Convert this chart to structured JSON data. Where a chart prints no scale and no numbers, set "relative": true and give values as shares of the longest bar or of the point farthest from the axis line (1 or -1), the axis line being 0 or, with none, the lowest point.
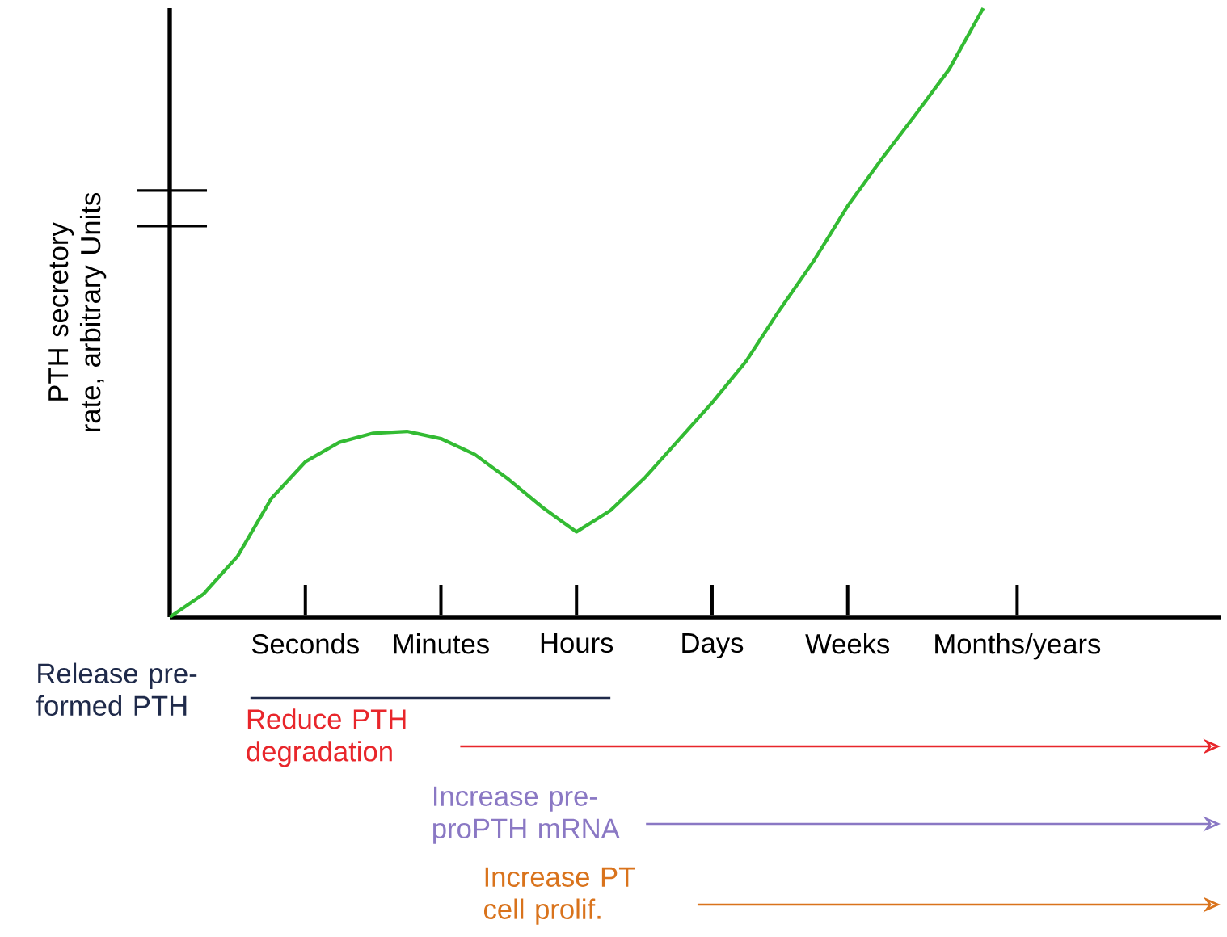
{
  "chart_data": {
    "type": "line",
    "relative": true,
    "ylabel": "PTH secretory rate, arbitrary Units",
    "categories": [
      null,
      null,
      null,
      null,
      "Seconds",
      null,
      null,
      null,
      "Minutes",
      null,
      null,
      null,
      "Hours",
      null,
      null,
      null,
      "Days",
      null,
      null,
      null,
      "Weeks",
      null,
      null,
      null,
      null,
      "Months/years",
      null,
      null,
      null,
      null,
      null,
      null
    ],
    "series": [
      {
        "color": "#33bb33",
        "values": [
          0,
          0.038,
          0.1,
          0.195,
          0.255,
          0.287,
          0.302,
          0.305,
          0.293,
          0.267,
          0.226,
          0.18,
          0.14,
          0.175,
          0.228,
          0.29,
          0.352,
          0.42,
          0.505,
          0.585,
          0.675,
          0.752,
          0.825,
          0.9,
          1.0,
          null,
          null,
          null,
          null,
          null,
          null,
          null
        ]
      }
    ],
    "annotations": [
      "Release pre-formed PTH",
      "Reduce PTH degradation",
      "Increase pre-proPTH mRNA",
      "Increase PT cell prolif."
    ],
    "marker": "none",
    "line_style": "solid"
  }
}
